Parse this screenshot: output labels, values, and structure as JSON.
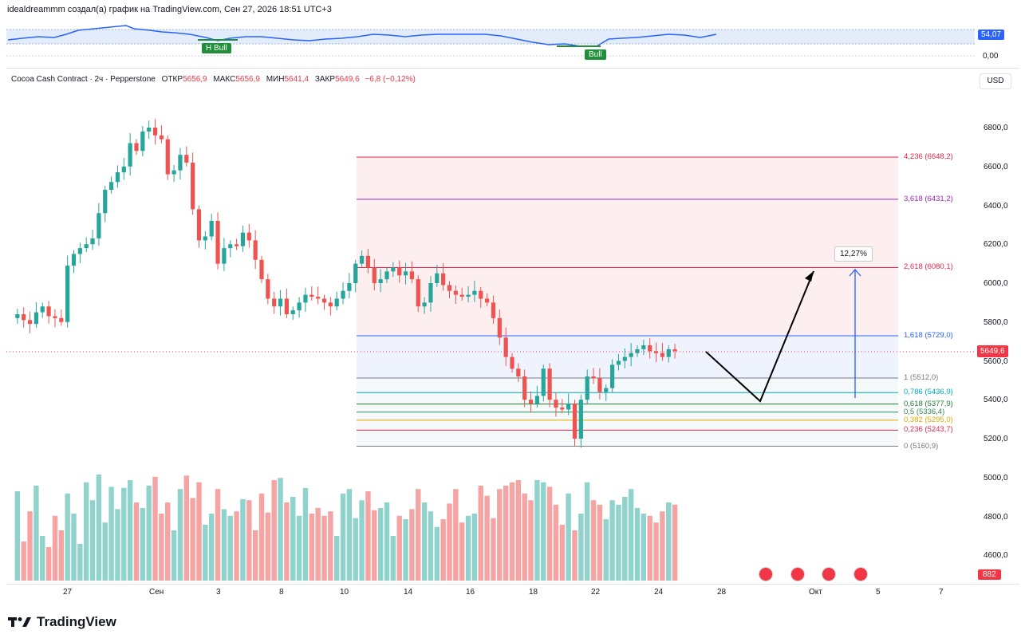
{
  "header": {
    "text": "idealdreammm создал(а) график на TradingView.com, Сен 27, 2026 18:51 UTC+3"
  },
  "rsi": {
    "value_label": "54,07",
    "zero_label": "0,00",
    "tags": [
      "H Bull",
      "Bull"
    ],
    "tag_color": "#1f8f3a",
    "line_color": "#2962ff"
  },
  "legend": {
    "symbol": "Cocoa Cash Contract · 2ч · Pepperstone",
    "open_key": "ОТКР",
    "open": "5656,9",
    "high_key": "МАКС",
    "high": "5656,9",
    "low_key": "МИН",
    "low": "5641,4",
    "close_key": "ЗАКР",
    "close": "5649,6",
    "change": "−6,8 (−0,12%)"
  },
  "currency_button": "USD",
  "price_axis": {
    "ticks": [
      "6800,0",
      "6600,0",
      "6400,0",
      "6200,0",
      "6000,0",
      "5800,0",
      "5600,0",
      "5400,0",
      "5200,0",
      "5000,0",
      "4800,0",
      "4600,0"
    ],
    "last_price": "5649,6",
    "volume_badge": "882"
  },
  "fibonacci": {
    "levels": [
      {
        "label": "4,236 (6648,2)",
        "price": 6648.2,
        "color": "#e0264b"
      },
      {
        "label": "3,618 (6431,2)",
        "price": 6431.2,
        "color": "#9c27b0"
      },
      {
        "label": "2,618 (6080,1)",
        "price": 6080.1,
        "color": "#e0264b"
      },
      {
        "label": "1,618 (5729,0)",
        "price": 5729.0,
        "color": "#2962ff"
      },
      {
        "label": "1 (5512,0)",
        "price": 5512.0,
        "color": "#787b86"
      },
      {
        "label": "0,786 (5436,9)",
        "price": 5436.9,
        "color": "#00acc1"
      },
      {
        "label": "0,618 (5377,9)",
        "price": 5377.9,
        "color": "#1e7d32"
      },
      {
        "label": "0,5 (5336,4)",
        "price": 5336.4,
        "color": "#2e8b57"
      },
      {
        "label": "0,382 (5295,0)",
        "price": 5295.0,
        "color": "#e0a800"
      },
      {
        "label": "0,236 (5243,7)",
        "price": 5243.7,
        "color": "#e0264b"
      },
      {
        "label": "0 (5160,9)",
        "price": 5160.9,
        "color": "#787b86"
      }
    ]
  },
  "projection": {
    "percent_label": "12,27%"
  },
  "time_axis": {
    "labels": [
      "27",
      "Сен",
      "3",
      "8",
      "10",
      "14",
      "16",
      "18",
      "22",
      "24",
      "28",
      "Окт",
      "5",
      "7"
    ]
  },
  "colors": {
    "up": "#26a69a",
    "down": "#ef5350",
    "vol_up": "#8fd3cc",
    "vol_down": "#f5a3a3"
  },
  "footer": {
    "brand": "TradingView"
  }
}
